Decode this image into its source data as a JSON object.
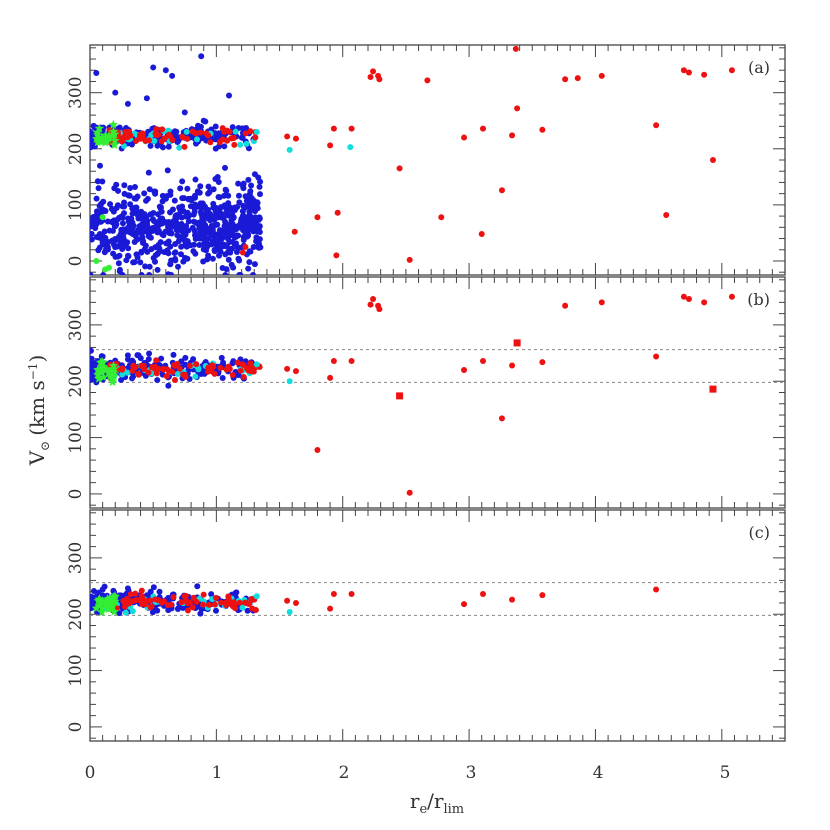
{
  "chart_data": {
    "type": "scatter",
    "xlabel": {
      "main": "r",
      "sub1": "e",
      "sep": "/r",
      "sub2": "lim"
    },
    "ylabel": {
      "main": "V",
      "sub1": "⊙",
      "units": "(km s",
      "sup": "−1",
      "close": ")"
    },
    "xlim": [
      0,
      5.5
    ],
    "ylim": [
      -25,
      385
    ],
    "x_ticks": [
      0,
      1,
      2,
      3,
      4,
      5
    ],
    "x_tick_labels": [
      "0",
      "1",
      "2",
      "3",
      "4",
      "5"
    ],
    "y_ticks": [
      0,
      100,
      200,
      300
    ],
    "y_tick_labels": [
      "0",
      "100",
      "200",
      "300"
    ],
    "colors": {
      "blue": "#1a1ad6",
      "red": "#ee1111",
      "cyan": "#11dddd",
      "green": "#33ee33",
      "dashed": "#888888"
    },
    "panels": [
      {
        "label": "(a)",
        "band": null,
        "blue_cloud": {
          "x_range": [
            0.0,
            1.35
          ],
          "v_range": [
            -25,
            190
          ],
          "count": 650
        },
        "blue_band": {
          "x_range": [
            0.0,
            1.3
          ],
          "v_center": 222,
          "spread": 9,
          "count": 220
        },
        "blue_sparse": [
          [
            0.05,
            335
          ],
          [
            0.5,
            345
          ],
          [
            0.6,
            340
          ],
          [
            0.65,
            330
          ],
          [
            0.88,
            365
          ],
          [
            1.1,
            295
          ],
          [
            0.3,
            280
          ],
          [
            0.75,
            265
          ],
          [
            0.2,
            300
          ],
          [
            0.45,
            290
          ],
          [
            0.9,
            250
          ]
        ],
        "red_band": {
          "x_range": [
            0.15,
            1.35
          ],
          "v_center": 222,
          "spread": 7,
          "count": 70
        },
        "cyan_band": {
          "x_range": [
            0.1,
            1.3
          ],
          "v_center": 220,
          "spread": 8,
          "count": 30
        },
        "green_cluster": {
          "x_range": [
            0.05,
            0.2
          ],
          "v_center": 219,
          "spread": 8,
          "count": 25
        },
        "green_extra": [
          [
            0.1,
            78
          ],
          [
            0.12,
            -15
          ],
          [
            0.15,
            -12
          ],
          [
            0.05,
            0
          ]
        ],
        "red_points": [
          [
            1.56,
            222
          ],
          [
            1.63,
            218
          ],
          [
            1.9,
            206
          ],
          [
            1.93,
            236
          ],
          [
            2.07,
            236
          ],
          [
            2.22,
            328
          ],
          [
            2.24,
            338
          ],
          [
            2.28,
            330
          ],
          [
            2.29,
            324
          ],
          [
            2.67,
            322
          ],
          [
            3.37,
            378
          ],
          [
            3.76,
            324
          ],
          [
            3.86,
            326
          ],
          [
            4.05,
            330
          ],
          [
            4.7,
            340
          ],
          [
            4.74,
            336
          ],
          [
            4.86,
            332
          ],
          [
            5.08,
            340
          ],
          [
            2.96,
            220
          ],
          [
            3.11,
            236
          ],
          [
            3.34,
            224
          ],
          [
            3.58,
            234
          ],
          [
            4.48,
            242
          ],
          [
            4.93,
            180
          ],
          [
            3.38,
            272
          ],
          [
            2.45,
            165
          ],
          [
            3.26,
            126
          ],
          [
            1.8,
            78
          ],
          [
            1.96,
            86
          ],
          [
            2.78,
            78
          ],
          [
            4.56,
            82
          ],
          [
            1.62,
            52
          ],
          [
            3.1,
            48
          ],
          [
            1.95,
            10
          ],
          [
            2.53,
            2
          ],
          [
            1.23,
            25
          ],
          [
            1.21,
            15
          ]
        ],
        "cyan_points": [
          [
            1.58,
            198
          ],
          [
            2.06,
            203
          ],
          [
            1.32,
            230
          ]
        ]
      },
      {
        "label": "(b)",
        "band": [
          198,
          256
        ],
        "blue_band": {
          "x_range": [
            0.0,
            1.3
          ],
          "v_center": 222,
          "spread": 9,
          "count": 230
        },
        "blue_sparse": [
          [
            0.05,
            198
          ],
          [
            0.62,
            192
          ],
          [
            0.1,
            244
          ],
          [
            0.3,
            246
          ]
        ],
        "red_band": {
          "x_range": [
            0.15,
            1.35
          ],
          "v_center": 222,
          "spread": 7,
          "count": 70
        },
        "cyan_band": {
          "x_range": [
            0.1,
            1.3
          ],
          "v_center": 220,
          "spread": 8,
          "count": 30
        },
        "green_cluster": {
          "x_range": [
            0.05,
            0.2
          ],
          "v_center": 219,
          "spread": 8,
          "count": 25
        },
        "red_points": [
          [
            1.56,
            222
          ],
          [
            1.63,
            218
          ],
          [
            1.9,
            206
          ],
          [
            1.93,
            236
          ],
          [
            2.07,
            236
          ],
          [
            2.22,
            336
          ],
          [
            2.24,
            346
          ],
          [
            2.28,
            334
          ],
          [
            2.29,
            328
          ],
          [
            3.76,
            334
          ],
          [
            4.05,
            340
          ],
          [
            4.7,
            350
          ],
          [
            4.74,
            346
          ],
          [
            4.86,
            340
          ],
          [
            5.08,
            350
          ],
          [
            2.96,
            220
          ],
          [
            3.11,
            236
          ],
          [
            3.34,
            228
          ],
          [
            3.58,
            234
          ],
          [
            4.48,
            244
          ],
          [
            3.26,
            134
          ],
          [
            1.8,
            78
          ],
          [
            2.53,
            2
          ]
        ],
        "red_squares": [
          [
            3.38,
            268
          ],
          [
            2.45,
            174
          ],
          [
            4.93,
            186
          ]
        ],
        "cyan_points": [
          [
            1.58,
            200
          ],
          [
            1.32,
            230
          ]
        ]
      },
      {
        "label": "(c)",
        "band": [
          198,
          256
        ],
        "blue_band": {
          "x_range": [
            0.0,
            1.3
          ],
          "v_center": 222,
          "spread": 9,
          "count": 230
        },
        "blue_sparse": [
          [
            0.1,
            244
          ],
          [
            0.3,
            246
          ],
          [
            0.55,
            240
          ]
        ],
        "red_band": {
          "x_range": [
            0.15,
            1.35
          ],
          "v_center": 222,
          "spread": 7,
          "count": 70
        },
        "cyan_band": {
          "x_range": [
            0.1,
            1.3
          ],
          "v_center": 220,
          "spread": 8,
          "count": 30
        },
        "green_cluster": {
          "x_range": [
            0.05,
            0.2
          ],
          "v_center": 219,
          "spread": 8,
          "count": 25
        },
        "red_points": [
          [
            1.56,
            224
          ],
          [
            1.63,
            220
          ],
          [
            1.9,
            210
          ],
          [
            1.93,
            236
          ],
          [
            2.07,
            236
          ],
          [
            2.96,
            218
          ],
          [
            3.11,
            236
          ],
          [
            3.34,
            226
          ],
          [
            3.58,
            234
          ],
          [
            4.48,
            244
          ]
        ],
        "cyan_points": [
          [
            1.58,
            204
          ],
          [
            1.32,
            232
          ]
        ]
      }
    ]
  }
}
